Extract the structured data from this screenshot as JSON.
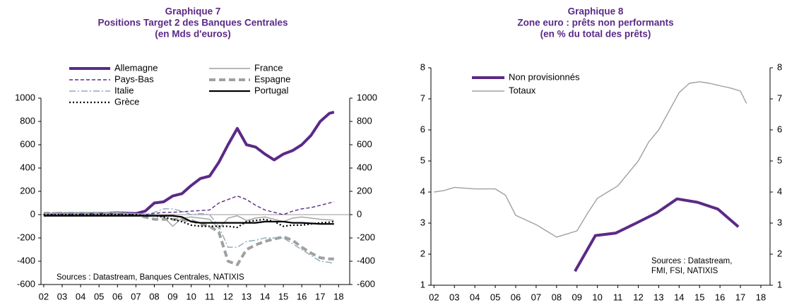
{
  "chart_data": [
    {
      "type": "line",
      "title": "Graphique 7",
      "subtitle": [
        "Positions Target 2 des Banques Centrales",
        "(en Mds d'euros)"
      ],
      "x": [
        2002,
        2003,
        2004,
        2005,
        2006,
        2007,
        2007.5,
        2008,
        2008.5,
        2009,
        2009.5,
        2010,
        2010.5,
        2011,
        2011.5,
        2012,
        2012.5,
        2013,
        2013.5,
        2014,
        2014.5,
        2015,
        2015.5,
        2016,
        2016.5,
        2017,
        2017.5,
        2017.75
      ],
      "series": [
        {
          "name": "Allemagne",
          "color": "#5b2a86",
          "line_style": "solid",
          "bold": true,
          "values": [
            0,
            5,
            10,
            10,
            15,
            10,
            30,
            100,
            110,
            160,
            180,
            250,
            310,
            330,
            450,
            600,
            740,
            600,
            580,
            520,
            470,
            520,
            550,
            600,
            680,
            800,
            870,
            880
          ]
        },
        {
          "name": "France",
          "color": "#a0a0a0",
          "line_style": "solid",
          "bold": false,
          "values": [
            10,
            10,
            15,
            20,
            15,
            10,
            5,
            0,
            -20,
            -100,
            -30,
            -20,
            -30,
            -40,
            -120,
            -30,
            -10,
            -50,
            -30,
            -20,
            -40,
            -60,
            -30,
            -20,
            -30,
            -40,
            -45,
            -50
          ]
        },
        {
          "name": "Pays-Bas",
          "color": "#5b2a86",
          "line_style": "dashed",
          "bold": false,
          "values": [
            0,
            0,
            5,
            5,
            5,
            0,
            0,
            10,
            20,
            20,
            25,
            30,
            35,
            40,
            100,
            130,
            160,
            130,
            80,
            40,
            20,
            0,
            30,
            50,
            60,
            80,
            100,
            110
          ]
        },
        {
          "name": "Espagne",
          "color": "#a0a0a0",
          "line_style": "dashed",
          "bold": true,
          "values": [
            10,
            10,
            10,
            10,
            10,
            0,
            -20,
            -40,
            -40,
            -40,
            -45,
            -50,
            -80,
            -100,
            -150,
            -400,
            -430,
            -300,
            -260,
            -230,
            -210,
            -190,
            -220,
            -280,
            -330,
            -370,
            -380,
            -380
          ]
        },
        {
          "name": "Italie",
          "color": "#8eaab9",
          "line_style": "dash-dot",
          "bold": false,
          "values": [
            20,
            20,
            20,
            20,
            20,
            10,
            0,
            20,
            50,
            50,
            30,
            0,
            10,
            0,
            -100,
            -280,
            -280,
            -230,
            -220,
            -200,
            -200,
            -200,
            -250,
            -300,
            -350,
            -400,
            -410,
            -420
          ]
        },
        {
          "name": "Portugal",
          "color": "#000000",
          "line_style": "solid",
          "bold": false,
          "values": [
            -10,
            -10,
            -10,
            -10,
            -10,
            -10,
            -10,
            -10,
            -10,
            -10,
            -20,
            -60,
            -70,
            -70,
            -70,
            -70,
            -70,
            -70,
            -70,
            -60,
            -60,
            -60,
            -70,
            -70,
            -75,
            -80,
            -80,
            -80
          ]
        },
        {
          "name": "Grèce",
          "color": "#000000",
          "line_style": "dotted",
          "bold": false,
          "values": [
            0,
            0,
            0,
            0,
            0,
            0,
            -10,
            -10,
            -20,
            -40,
            -60,
            -90,
            -100,
            -100,
            -100,
            -100,
            -110,
            -60,
            -50,
            -40,
            -60,
            -100,
            -90,
            -90,
            -80,
            -70,
            -65,
            -60
          ]
        }
      ],
      "xlim": [
        2001.85,
        2018.6
      ],
      "xticks": [
        {
          "value": 2002,
          "label": "02"
        },
        {
          "value": 2003,
          "label": "03"
        },
        {
          "value": 2004,
          "label": "04"
        },
        {
          "value": 2005,
          "label": "05"
        },
        {
          "value": 2006,
          "label": "06"
        },
        {
          "value": 2007,
          "label": "07"
        },
        {
          "value": 2008,
          "label": "08"
        },
        {
          "value": 2009,
          "label": "09"
        },
        {
          "value": 2010,
          "label": "10"
        },
        {
          "value": 2011,
          "label": "11"
        },
        {
          "value": 2012,
          "label": "12"
        },
        {
          "value": 2013,
          "label": "13"
        },
        {
          "value": 2014,
          "label": "14"
        },
        {
          "value": 2015,
          "label": "15"
        },
        {
          "value": 2016,
          "label": "16"
        },
        {
          "value": 2017,
          "label": "17"
        },
        {
          "value": 2018,
          "label": "18"
        }
      ],
      "ylim": [
        -600,
        1000
      ],
      "yticks": [
        -600,
        -400,
        -200,
        0,
        200,
        400,
        600,
        800,
        1000
      ],
      "y2lim": [
        -600,
        1000
      ],
      "y2ticks": [
        -600,
        -400,
        -200,
        0,
        200,
        400,
        600,
        800,
        1000
      ],
      "zero_line": true,
      "annotations": [
        "Sources : Datastream, Banques Centrales, NATIXIS"
      ]
    },
    {
      "type": "line",
      "title": "Graphique 8",
      "subtitle": [
        "Zone euro : prêts non performants",
        "(en % du total des prêts)"
      ],
      "series": [
        {
          "name": "Non provisionnés",
          "color": "#5b2a86",
          "line_style": "solid",
          "bold": true,
          "x": [
            2008.9,
            2009.9,
            2010.9,
            2011.9,
            2012.9,
            2013.9,
            2014.9,
            2015.9,
            2016.9
          ],
          "values": [
            1.45,
            2.6,
            2.68,
            3.0,
            3.33,
            3.78,
            3.67,
            3.45,
            2.88
          ]
        },
        {
          "name": "Totaux",
          "color": "#a0a0a0",
          "line_style": "solid",
          "bold": false,
          "x": [
            2002,
            2002.5,
            2003,
            2004,
            2005,
            2005.5,
            2006,
            2007,
            2007.5,
            2008,
            2008.5,
            2009,
            2009.5,
            2010,
            2010.5,
            2011,
            2011.5,
            2012,
            2012.5,
            2013,
            2013.5,
            2014,
            2014.5,
            2015,
            2015.5,
            2016,
            2016.5,
            2017,
            2017.3
          ],
          "values": [
            4.0,
            4.05,
            4.15,
            4.1,
            4.1,
            3.9,
            3.25,
            2.95,
            2.75,
            2.55,
            2.65,
            2.75,
            3.3,
            3.8,
            4.0,
            4.2,
            4.6,
            5.0,
            5.6,
            6.0,
            6.6,
            7.2,
            7.5,
            7.55,
            7.5,
            7.42,
            7.35,
            7.25,
            6.85
          ]
        }
      ],
      "xlim": [
        2001.85,
        2018.45
      ],
      "xticks": [
        {
          "value": 2002,
          "label": "02"
        },
        {
          "value": 2003,
          "label": "03"
        },
        {
          "value": 2004,
          "label": "04"
        },
        {
          "value": 2005,
          "label": "05"
        },
        {
          "value": 2006,
          "label": "06"
        },
        {
          "value": 2007,
          "label": "07"
        },
        {
          "value": 2008,
          "label": "08"
        },
        {
          "value": 2009,
          "label": "09"
        },
        {
          "value": 2010,
          "label": "10"
        },
        {
          "value": 2011,
          "label": "11"
        },
        {
          "value": 2012,
          "label": "12"
        },
        {
          "value": 2013,
          "label": "13"
        },
        {
          "value": 2014,
          "label": "14"
        },
        {
          "value": 2015,
          "label": "15"
        },
        {
          "value": 2016,
          "label": "16"
        },
        {
          "value": 2017,
          "label": "17"
        },
        {
          "value": 2018,
          "label": "18"
        }
      ],
      "ylim": [
        1,
        8
      ],
      "yticks": [
        1,
        2,
        3,
        4,
        5,
        6,
        7,
        8
      ],
      "y2lim": [
        1,
        8
      ],
      "y2ticks": [
        1,
        2,
        3,
        4,
        5,
        6,
        7,
        8
      ],
      "zero_line": false,
      "annotations": [
        "Sources : Datastream,",
        "FMI, FSI, NATIXIS"
      ]
    }
  ]
}
